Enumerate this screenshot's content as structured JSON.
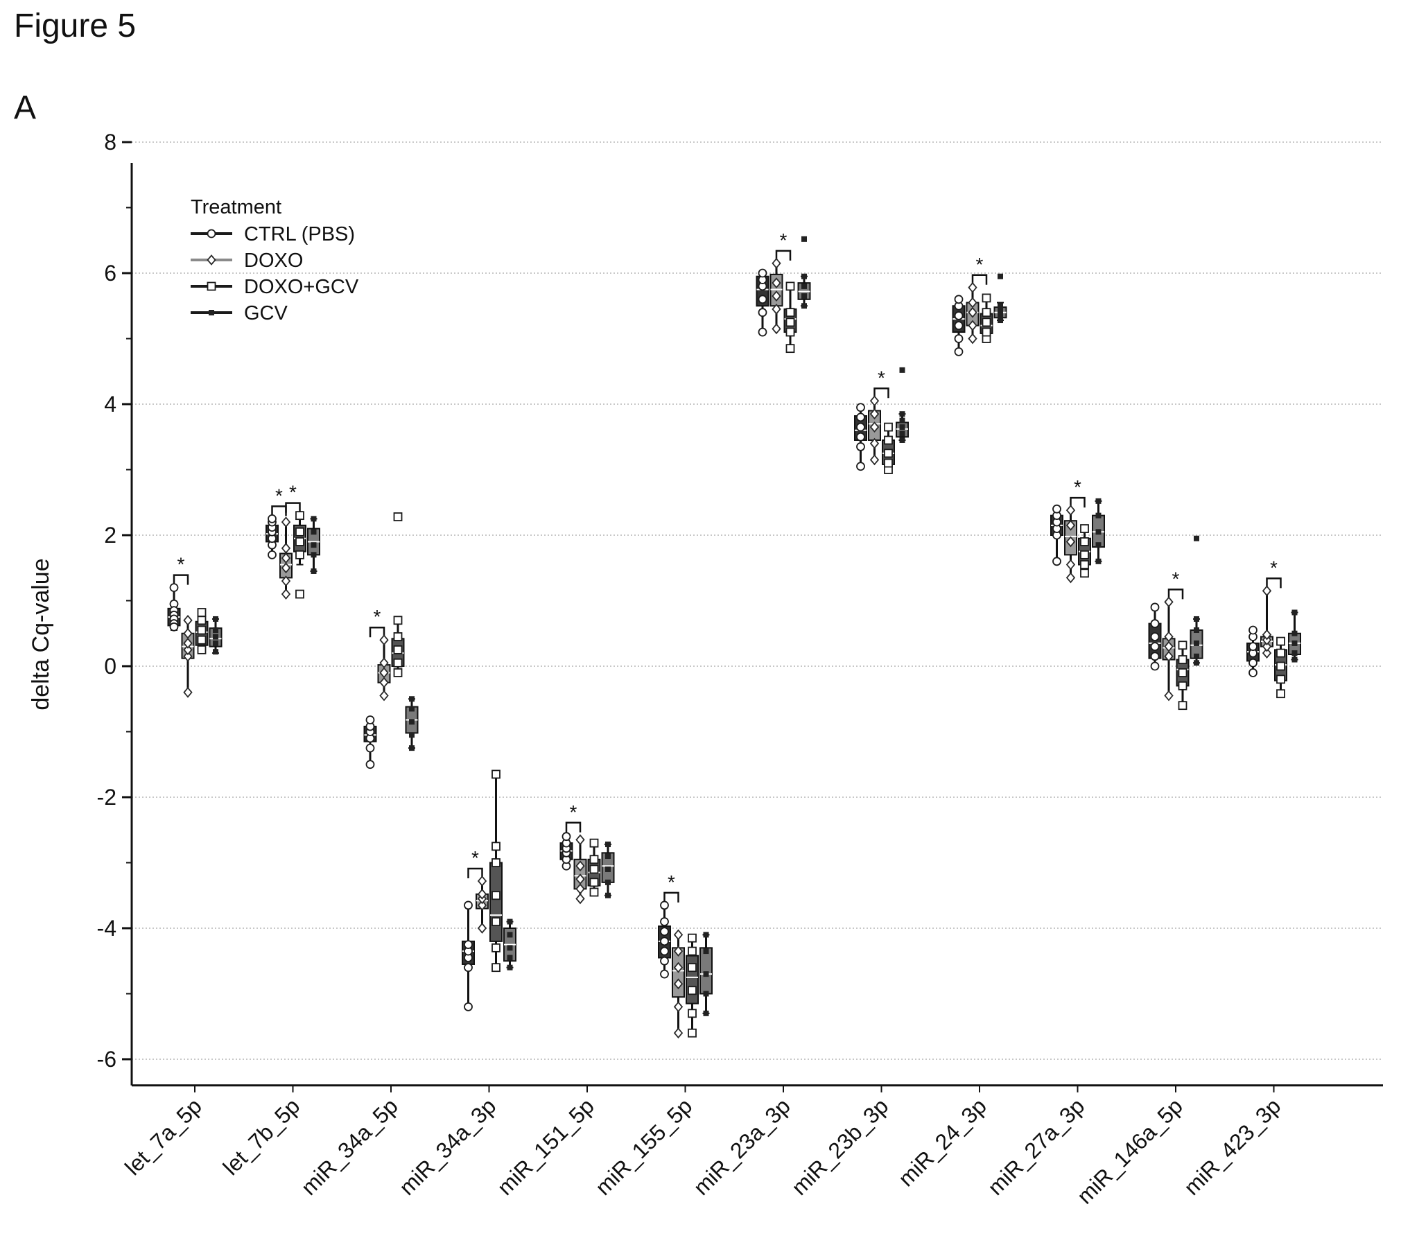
{
  "figure": {
    "title": "Figure 5",
    "panel": "A"
  },
  "chart_data": {
    "type": "box",
    "title": "",
    "xlabel": "",
    "ylabel": "delta Cq-value",
    "ylim": [
      -6.4,
      8.5
    ],
    "yticks": [
      -6,
      -4,
      -2,
      0,
      2,
      4,
      6,
      8
    ],
    "grid": "horizontal dotted",
    "legend": {
      "title": "Treatment",
      "position": "top-left",
      "entries": [
        "CTRL (PBS)",
        "DOXO",
        "DOXO+GCV",
        "GCV"
      ]
    },
    "categories": [
      "let_7a_5p",
      "let_7b_5p",
      "miR_34a_5p",
      "miR_34a_3p",
      "miR_151_5p",
      "miR_155_5p",
      "miR_23a_3p",
      "miR_23b_3p",
      "miR_24_3p",
      "miR_27a_3p",
      "miR_146a_5p",
      "miR_423_3p"
    ],
    "series": [
      {
        "name": "CTRL (PBS)",
        "marker": "circle",
        "color": "#1a1a1a",
        "box_fill": "#333333",
        "stats": [
          [
            0.55,
            0.62,
            0.75,
            0.88,
            1.2
          ],
          [
            1.7,
            1.9,
            2.02,
            2.15,
            2.25
          ],
          [
            -1.5,
            -1.15,
            -1.05,
            -0.92,
            -0.8
          ],
          [
            -5.2,
            -4.55,
            -4.35,
            -4.2,
            -3.65
          ],
          [
            -3.05,
            -2.95,
            -2.82,
            -2.7,
            -2.58
          ],
          [
            -4.7,
            -4.45,
            -4.2,
            -3.97,
            -3.65
          ],
          [
            5.1,
            5.5,
            5.75,
            5.95,
            6.0
          ],
          [
            3.05,
            3.45,
            3.6,
            3.82,
            3.95
          ],
          [
            4.8,
            5.1,
            5.3,
            5.5,
            5.6
          ],
          [
            1.6,
            2.0,
            2.15,
            2.3,
            2.4
          ],
          [
            0.0,
            0.12,
            0.35,
            0.65,
            0.9
          ],
          [
            -0.1,
            0.08,
            0.22,
            0.35,
            0.55
          ]
        ],
        "points": [
          [
            1.2,
            0.95,
            0.85,
            0.78,
            0.72,
            0.65,
            0.6
          ],
          [
            1.7,
            1.85,
            1.95,
            2.05,
            2.12,
            2.2,
            2.25
          ],
          [
            -1.5,
            -1.25,
            -1.1,
            -1.0,
            -0.92,
            -0.82
          ],
          [
            -5.2,
            -4.6,
            -4.45,
            -4.35,
            -4.25,
            -3.65
          ],
          [
            -3.05,
            -2.95,
            -2.85,
            -2.78,
            -2.7,
            -2.6
          ],
          [
            -4.7,
            -4.5,
            -4.35,
            -4.2,
            -4.05,
            -3.9,
            -3.65
          ],
          [
            5.1,
            5.4,
            5.6,
            5.8,
            5.9,
            6.0
          ],
          [
            3.05,
            3.35,
            3.5,
            3.65,
            3.8,
            3.95
          ],
          [
            4.8,
            5.0,
            5.2,
            5.35,
            5.5,
            5.6
          ],
          [
            1.6,
            2.0,
            2.1,
            2.2,
            2.3,
            2.4
          ],
          [
            0.0,
            0.15,
            0.3,
            0.45,
            0.65,
            0.9
          ],
          [
            -0.1,
            0.05,
            0.2,
            0.3,
            0.45,
            0.55
          ]
        ]
      },
      {
        "name": "DOXO",
        "marker": "diamond",
        "color": "#2a2a2a",
        "box_fill": "#9a9a9a",
        "stats": [
          [
            -0.4,
            0.12,
            0.3,
            0.5,
            0.7
          ],
          [
            1.1,
            1.35,
            1.55,
            1.72,
            2.2
          ],
          [
            -0.45,
            -0.25,
            -0.1,
            0.02,
            0.4
          ],
          [
            -4.0,
            -3.7,
            -3.58,
            -3.48,
            -3.28
          ],
          [
            -3.55,
            -3.4,
            -3.2,
            -2.95,
            -2.65
          ],
          [
            -5.6,
            -5.05,
            -4.65,
            -4.3,
            -4.1
          ],
          [
            5.15,
            5.5,
            5.75,
            5.98,
            6.15
          ],
          [
            3.15,
            3.45,
            3.7,
            3.9,
            4.05
          ],
          [
            5.0,
            5.2,
            5.4,
            5.55,
            5.78
          ],
          [
            1.35,
            1.7,
            1.98,
            2.22,
            2.38
          ],
          [
            -0.45,
            0.1,
            0.28,
            0.42,
            0.98
          ],
          [
            0.2,
            0.3,
            0.38,
            0.45,
            1.15
          ]
        ],
        "points": [
          [
            -0.4,
            0.15,
            0.25,
            0.35,
            0.5,
            0.7
          ],
          [
            1.1,
            1.3,
            1.5,
            1.65,
            1.8,
            2.2
          ],
          [
            -0.45,
            -0.25,
            -0.1,
            0.05,
            0.4
          ],
          [
            -4.0,
            -3.65,
            -3.55,
            -3.48,
            -3.28
          ],
          [
            -3.55,
            -3.4,
            -3.25,
            -3.05,
            -2.65
          ],
          [
            -5.6,
            -5.2,
            -4.85,
            -4.6,
            -4.35,
            -4.1
          ],
          [
            5.15,
            5.45,
            5.65,
            5.85,
            6.15
          ],
          [
            3.15,
            3.4,
            3.65,
            3.85,
            4.05
          ],
          [
            5.0,
            5.2,
            5.4,
            5.55,
            5.78
          ],
          [
            1.35,
            1.55,
            1.9,
            2.15,
            2.38
          ],
          [
            -0.45,
            0.15,
            0.3,
            0.45,
            0.98
          ],
          [
            0.2,
            0.3,
            0.4,
            0.48,
            1.15
          ]
        ]
      },
      {
        "name": "DOXO+GCV",
        "marker": "square",
        "color": "#1a1a1a",
        "box_fill": "#555555",
        "stats": [
          [
            0.22,
            0.32,
            0.52,
            0.68,
            0.82
          ],
          [
            1.55,
            1.75,
            1.95,
            2.15,
            2.3
          ],
          [
            -0.1,
            0.0,
            0.2,
            0.42,
            0.7
          ],
          [
            -4.6,
            -4.2,
            -3.8,
            -3.0,
            -1.65
          ],
          [
            -3.45,
            -3.35,
            -3.15,
            -2.95,
            -2.7
          ],
          [
            -5.6,
            -5.15,
            -4.75,
            -4.42,
            -4.15
          ],
          [
            4.85,
            5.1,
            5.3,
            5.45,
            5.8
          ],
          [
            3.0,
            3.08,
            3.25,
            3.45,
            3.65
          ],
          [
            5.0,
            5.08,
            5.2,
            5.38,
            5.62
          ],
          [
            1.42,
            1.55,
            1.75,
            1.95,
            2.1
          ],
          [
            -0.6,
            -0.3,
            -0.05,
            0.1,
            0.32
          ],
          [
            -0.42,
            -0.22,
            0.02,
            0.25,
            0.38
          ]
        ],
        "points": [
          [
            0.25,
            0.4,
            0.55,
            0.7,
            0.82
          ],
          [
            1.1,
            1.7,
            1.9,
            2.05,
            2.3
          ],
          [
            -0.1,
            0.05,
            0.25,
            0.45,
            0.7,
            2.28
          ],
          [
            -4.6,
            -4.3,
            -3.9,
            -3.5,
            -3.0,
            -2.75,
            -1.65
          ],
          [
            -3.45,
            -3.3,
            -3.1,
            -2.95,
            -2.7
          ],
          [
            -5.6,
            -5.3,
            -4.95,
            -4.6,
            -4.35,
            -4.15
          ],
          [
            4.85,
            5.1,
            5.25,
            5.4,
            5.8
          ],
          [
            3.0,
            3.1,
            3.25,
            3.45,
            3.65
          ],
          [
            5.0,
            5.1,
            5.25,
            5.4,
            5.62
          ],
          [
            1.42,
            1.55,
            1.7,
            1.9,
            2.1
          ],
          [
            -0.6,
            -0.3,
            -0.1,
            0.1,
            0.32
          ],
          [
            -0.42,
            -0.2,
            0.0,
            0.2,
            0.38
          ]
        ]
      },
      {
        "name": "GCV",
        "marker": "star",
        "color": "#222222",
        "box_fill": "#7a7a7a",
        "stats": [
          [
            0.2,
            0.3,
            0.42,
            0.58,
            0.72
          ],
          [
            1.45,
            1.7,
            1.9,
            2.1,
            2.25
          ],
          [
            -1.25,
            -1.02,
            -0.82,
            -0.62,
            -0.5
          ],
          [
            -4.6,
            -4.5,
            -4.25,
            -4.0,
            -3.9
          ],
          [
            -3.5,
            -3.3,
            -3.05,
            -2.85,
            -2.72
          ],
          [
            -5.3,
            -5.0,
            -4.7,
            -4.3,
            -4.1
          ],
          [
            5.5,
            5.6,
            5.72,
            5.85,
            5.95
          ],
          [
            3.45,
            3.5,
            3.62,
            3.72,
            3.85
          ],
          [
            5.28,
            5.32,
            5.4,
            5.48,
            5.55
          ],
          [
            1.6,
            1.82,
            2.05,
            2.3,
            2.52
          ],
          [
            0.05,
            0.12,
            0.32,
            0.55,
            0.72
          ],
          [
            0.1,
            0.18,
            0.35,
            0.5,
            0.82
          ]
        ],
        "points": [
          [
            0.22,
            0.35,
            0.45,
            0.55,
            0.72
          ],
          [
            1.45,
            1.7,
            1.85,
            2.05,
            2.25
          ],
          [
            -1.25,
            -1.05,
            -0.85,
            -0.65,
            -0.5
          ],
          [
            -4.6,
            -4.45,
            -4.3,
            -4.1,
            -3.9
          ],
          [
            -3.5,
            -3.3,
            -3.1,
            -2.9,
            -2.72
          ],
          [
            -5.3,
            -5.0,
            -4.7,
            -4.35,
            -4.1
          ],
          [
            5.5,
            5.65,
            5.8,
            5.95,
            6.52
          ],
          [
            3.45,
            3.55,
            3.65,
            3.75,
            3.85,
            4.52
          ],
          [
            5.28,
            5.35,
            5.42,
            5.5,
            5.95
          ],
          [
            1.6,
            1.85,
            2.05,
            2.3,
            2.52
          ],
          [
            0.05,
            0.15,
            0.35,
            0.55,
            0.72,
            1.95
          ],
          [
            0.1,
            0.2,
            0.35,
            0.5,
            0.82
          ]
        ]
      }
    ],
    "significance": [
      {
        "category": 0,
        "from": 0,
        "to": 1,
        "label": "*"
      },
      {
        "category": 1,
        "from": 0,
        "to": 1,
        "label": "*"
      },
      {
        "category": 1,
        "from": 1,
        "to": 2,
        "label": "*"
      },
      {
        "category": 2,
        "from": 0,
        "to": 1,
        "label": "*"
      },
      {
        "category": 3,
        "from": 0,
        "to": 1,
        "label": "*"
      },
      {
        "category": 4,
        "from": 0,
        "to": 1,
        "label": "*"
      },
      {
        "category": 5,
        "from": 0,
        "to": 1,
        "label": "*"
      },
      {
        "category": 6,
        "from": 1,
        "to": 2,
        "label": "*"
      },
      {
        "category": 7,
        "from": 1,
        "to": 2,
        "label": "*"
      },
      {
        "category": 8,
        "from": 1,
        "to": 2,
        "label": "*"
      },
      {
        "category": 9,
        "from": 1,
        "to": 2,
        "label": "*"
      },
      {
        "category": 10,
        "from": 1,
        "to": 2,
        "label": "*"
      },
      {
        "category": 11,
        "from": 1,
        "to": 2,
        "label": "*"
      }
    ]
  }
}
